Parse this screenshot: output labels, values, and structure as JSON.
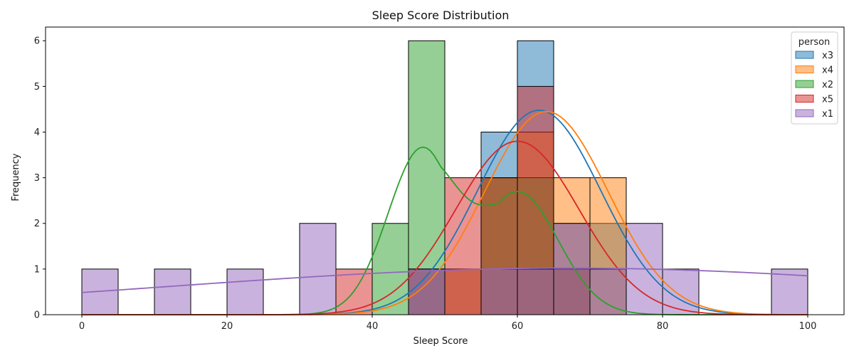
{
  "chart_data": {
    "type": "bar",
    "title": "Sleep Score Distribution",
    "xlabel": "Sleep Score",
    "ylabel": "Frequency",
    "xlim": [
      -5,
      105
    ],
    "ylim": [
      0,
      6.3
    ],
    "xticks": [
      0,
      20,
      40,
      60,
      80,
      100
    ],
    "yticks": [
      0,
      1,
      2,
      3,
      4,
      5,
      6
    ],
    "bin_width": 5,
    "bin_starts": [
      0,
      5,
      10,
      15,
      20,
      25,
      30,
      35,
      40,
      45,
      50,
      55,
      60,
      65,
      70,
      75,
      80,
      85,
      90,
      95
    ],
    "legend": {
      "title": "person",
      "position": "top-right"
    },
    "series": [
      {
        "name": "x3",
        "color": "#1f77b4",
        "counts": [
          0,
          0,
          0,
          0,
          0,
          0,
          0,
          0,
          0,
          1,
          1,
          4,
          6,
          2,
          2,
          0,
          0,
          0,
          0,
          0
        ]
      },
      {
        "name": "x4",
        "color": "#ff7f0e",
        "counts": [
          0,
          0,
          0,
          0,
          0,
          0,
          0,
          0,
          0,
          0,
          1,
          3,
          4,
          3,
          3,
          0,
          0,
          0,
          0,
          0
        ]
      },
      {
        "name": "x2",
        "color": "#2ca02c",
        "counts": [
          0,
          0,
          0,
          0,
          0,
          0,
          0,
          0,
          2,
          6,
          0,
          3,
          3,
          1,
          0,
          0,
          0,
          0,
          0,
          0
        ]
      },
      {
        "name": "x5",
        "color": "#d62728",
        "counts": [
          0,
          0,
          0,
          0,
          0,
          0,
          0,
          1,
          0,
          1,
          3,
          3,
          5,
          1,
          0,
          0,
          0,
          0,
          0,
          0
        ]
      },
      {
        "name": "x1",
        "color": "#9467bd",
        "counts": [
          1,
          0,
          1,
          0,
          1,
          0,
          2,
          0,
          0,
          1,
          0,
          1,
          1,
          2,
          1,
          2,
          1,
          0,
          0,
          1
        ]
      }
    ],
    "kde": [
      {
        "name": "x3",
        "peak_x": 63,
        "peak_y": 4.48
      },
      {
        "name": "x4",
        "peak_x": 64,
        "peak_y": 4.45
      },
      {
        "name": "x2",
        "peak_x": 47,
        "peak_y": 3.67,
        "second_peak_x": 60,
        "second_peak_y": 2.7
      },
      {
        "name": "x5",
        "peak_x": 60,
        "peak_y": 3.8
      },
      {
        "name": "x1",
        "peak_x": 67,
        "peak_y": 1.02
      }
    ]
  }
}
